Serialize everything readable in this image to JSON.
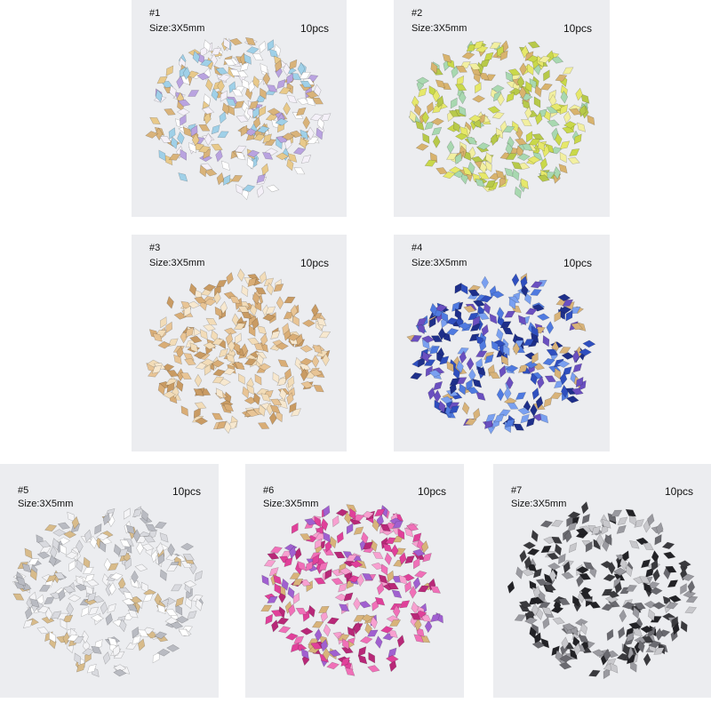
{
  "panels": [
    {
      "number": "#1",
      "size": "Size:3X5mm",
      "quantity": "10pcs"
    },
    {
      "number": "#2",
      "size": "Size:3X5mm",
      "quantity": "10pcs"
    },
    {
      "number": "#3",
      "size": "Size:3X5mm",
      "quantity": "10pcs"
    },
    {
      "number": "#4",
      "size": "Size:3X5mm",
      "quantity": "10pcs"
    },
    {
      "number": "#5",
      "size": "Size:3X5mm",
      "quantity": "10pcs"
    },
    {
      "number": "#6",
      "size": "Size:3X5mm",
      "quantity": "10pcs"
    },
    {
      "number": "#7",
      "size": "Size:3X5mm",
      "quantity": "10pcs"
    }
  ]
}
